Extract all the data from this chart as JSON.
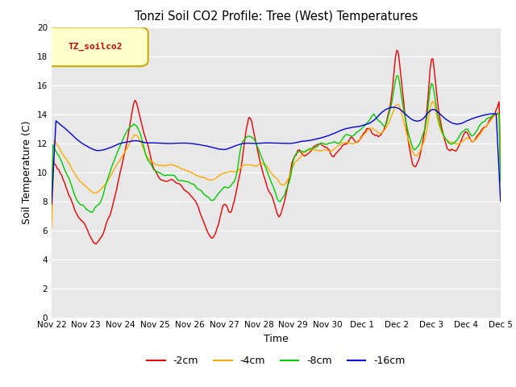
{
  "title": "Tonzi Soil CO2 Profile: Tree (West) Temperatures",
  "xlabel": "Time",
  "ylabel": "Soil Temperature (C)",
  "ylim": [
    0,
    20
  ],
  "yticks": [
    0,
    2,
    4,
    6,
    8,
    10,
    12,
    14,
    16,
    18,
    20
  ],
  "bg_color": "#e8e8e8",
  "fig_color": "#ffffff",
  "legend_label": "TZ_soilco2",
  "series": [
    {
      "label": "-2cm",
      "color": "#ee0000"
    },
    {
      "label": "-4cm",
      "color": "#ffaa00"
    },
    {
      "label": "-8cm",
      "color": "#00cc00"
    },
    {
      "label": "-16cm",
      "color": "#0000dd"
    }
  ],
  "day_labels": [
    "Nov 22",
    "Nov 23",
    "Nov 24",
    "Nov 25",
    "Nov 26",
    "Nov 27",
    "Nov 28",
    "Nov 29",
    "Nov 30",
    "Dec 1",
    "Dec 2",
    "Dec 3",
    "Dec 4",
    "Dec 5"
  ],
  "n_points": 313
}
